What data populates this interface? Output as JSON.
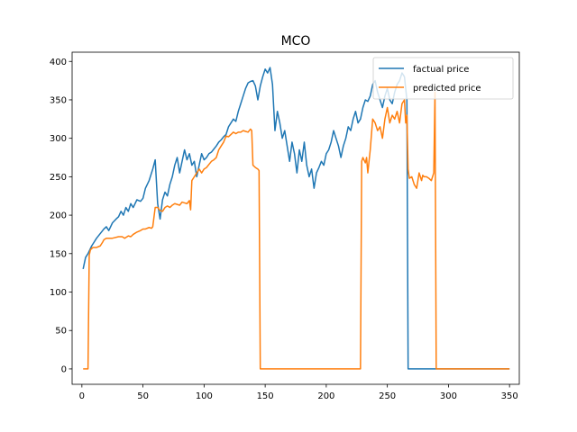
{
  "chart_data": {
    "type": "line",
    "title": "MCO",
    "xlabel": "",
    "ylabel": "",
    "xlim": [
      -8,
      358
    ],
    "ylim": [
      -20,
      412
    ],
    "xticks": [
      0,
      50,
      100,
      150,
      200,
      250,
      300,
      350
    ],
    "yticks": [
      0,
      50,
      100,
      150,
      200,
      250,
      300,
      350,
      400
    ],
    "grid": false,
    "legend_position": "top-right",
    "series": [
      {
        "name": "factual price",
        "color": "#1f77b4",
        "x": [
          1,
          3,
          5,
          8,
          10,
          12,
          15,
          18,
          20,
          22,
          25,
          28,
          30,
          32,
          34,
          36,
          38,
          40,
          42,
          45,
          48,
          50,
          52,
          55,
          58,
          60,
          62,
          64,
          66,
          68,
          70,
          72,
          74,
          76,
          78,
          80,
          82,
          84,
          86,
          88,
          90,
          92,
          94,
          96,
          98,
          100,
          102,
          104,
          106,
          108,
          110,
          112,
          114,
          116,
          118,
          120,
          122,
          124,
          126,
          128,
          130,
          132,
          134,
          136,
          138,
          140,
          142,
          144,
          146,
          148,
          150,
          152,
          154,
          156,
          158,
          160,
          162,
          164,
          166,
          168,
          170,
          172,
          174,
          176,
          178,
          180,
          182,
          184,
          186,
          188,
          190,
          192,
          194,
          196,
          198,
          200,
          202,
          204,
          206,
          208,
          210,
          212,
          214,
          216,
          218,
          220,
          222,
          224,
          226,
          228,
          230,
          232,
          234,
          236,
          238,
          240,
          242,
          244,
          246,
          248,
          250,
          252,
          254,
          256,
          258,
          260,
          262,
          264,
          266,
          267,
          268,
          300,
          350
        ],
        "y": [
          130,
          145,
          150,
          160,
          165,
          170,
          176,
          182,
          185,
          180,
          190,
          195,
          198,
          205,
          200,
          210,
          205,
          215,
          210,
          220,
          218,
          222,
          235,
          245,
          260,
          272,
          215,
          195,
          220,
          230,
          225,
          240,
          250,
          265,
          275,
          255,
          270,
          285,
          272,
          280,
          265,
          270,
          250,
          265,
          280,
          272,
          275,
          280,
          282,
          286,
          290,
          295,
          298,
          302,
          305,
          315,
          320,
          325,
          322,
          335,
          345,
          355,
          365,
          372,
          374,
          375,
          368,
          350,
          368,
          380,
          390,
          385,
          392,
          370,
          310,
          335,
          320,
          300,
          310,
          290,
          270,
          295,
          280,
          255,
          285,
          270,
          295,
          265,
          250,
          260,
          235,
          255,
          262,
          270,
          265,
          280,
          285,
          295,
          310,
          300,
          290,
          275,
          290,
          300,
          315,
          310,
          325,
          335,
          320,
          325,
          340,
          350,
          348,
          355,
          370,
          375,
          360,
          350,
          340,
          355,
          365,
          350,
          345,
          360,
          370,
          375,
          385,
          380,
          350,
          0,
          0,
          0,
          0
        ]
      },
      {
        "name": "predicted price",
        "color": "#ff7f0e",
        "x": [
          1,
          3,
          5,
          6,
          7,
          9,
          12,
          15,
          17,
          18,
          20,
          25,
          30,
          33,
          35,
          38,
          40,
          42,
          45,
          48,
          50,
          52,
          55,
          57,
          58,
          60,
          62,
          64,
          66,
          68,
          70,
          72,
          74,
          76,
          78,
          80,
          82,
          84,
          86,
          88,
          89,
          90,
          92,
          94,
          96,
          98,
          100,
          102,
          104,
          106,
          108,
          110,
          112,
          114,
          116,
          118,
          120,
          122,
          124,
          126,
          128,
          130,
          132,
          134,
          136,
          138,
          139,
          140,
          142,
          144,
          145,
          146,
          150,
          200,
          225,
          228,
          229,
          230,
          232,
          233,
          234,
          236,
          238,
          240,
          242,
          244,
          246,
          248,
          250,
          252,
          254,
          256,
          258,
          260,
          262,
          264,
          265,
          266,
          267,
          268,
          270,
          272,
          274,
          276,
          277,
          278,
          279,
          280,
          282,
          284,
          286,
          288,
          289,
          290,
          300,
          350
        ],
        "y": [
          0,
          0,
          0,
          148,
          155,
          158,
          158,
          160,
          165,
          168,
          170,
          170,
          172,
          172,
          170,
          173,
          172,
          175,
          178,
          180,
          182,
          182,
          184,
          183,
          185,
          210,
          210,
          206,
          205,
          210,
          212,
          210,
          213,
          215,
          214,
          213,
          217,
          216,
          215,
          219,
          207,
          245,
          250,
          255,
          260,
          255,
          260,
          262,
          266,
          270,
          272,
          275,
          285,
          290,
          295,
          303,
          302,
          305,
          308,
          306,
          308,
          308,
          310,
          309,
          308,
          312,
          310,
          265,
          262,
          260,
          258,
          0,
          0,
          0,
          0,
          0,
          270,
          275,
          268,
          275,
          255,
          285,
          325,
          320,
          310,
          315,
          300,
          325,
          340,
          320,
          330,
          325,
          335,
          320,
          345,
          350,
          320,
          330,
          260,
          248,
          250,
          240,
          235,
          255,
          250,
          245,
          252,
          250,
          250,
          248,
          245,
          255,
          360,
          0,
          0,
          0
        ]
      }
    ]
  }
}
